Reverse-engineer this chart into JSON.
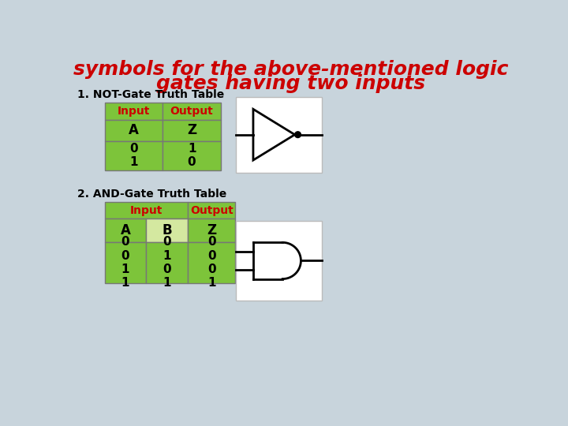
{
  "title_line1": "symbols for the above-mentioned logic",
  "title_line2": "gates having two inputs",
  "title_color": "#cc0000",
  "title_fontsize": 18,
  "bg_color": "#c8d4dc",
  "table_green": "#7dc43a",
  "table_green_light": "#d4e8a0",
  "table_header_text_color": "#cc0000",
  "table_cell_text_color": "#000000",
  "table_border_color": "#777777",
  "section1_label": "1. NOT-Gate Truth Table",
  "section2_label": "2. AND-Gate Truth Table",
  "section_fontsize": 10
}
